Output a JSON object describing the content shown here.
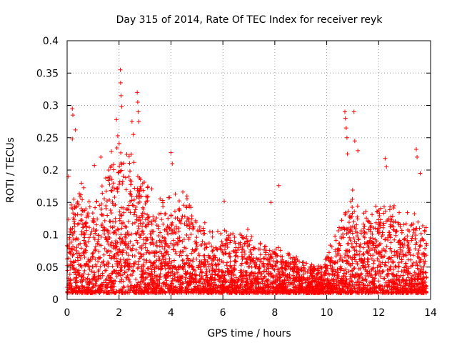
{
  "chart_data": {
    "type": "scatter",
    "title": "Day 315 of 2014, Rate Of TEC Index for receiver reyk",
    "xlabel": "GPS time / hours",
    "ylabel": "ROTI / TECUs",
    "xlim": [
      0,
      14
    ],
    "ylim": [
      0,
      0.4
    ],
    "grid": true,
    "marker": "+",
    "series_color": "#ff0000",
    "x_ticks": [
      0,
      2,
      4,
      6,
      8,
      10,
      12,
      14
    ],
    "x_tick_labels": [
      "0",
      "2",
      "4",
      "6",
      "8",
      "10",
      "12",
      "14"
    ],
    "y_ticks": [
      0,
      0.05,
      0.1,
      0.15,
      0.2,
      0.25,
      0.3,
      0.35,
      0.4
    ],
    "y_tick_labels": [
      "0",
      "0.05",
      "0.1",
      "0.15",
      "0.2",
      "0.25",
      "0.3",
      "0.35",
      "0.4"
    ],
    "envelope": {
      "description": "approximate upper envelope of ROTI values per hour bin (used to regenerate the dense point cloud)",
      "x": [
        0,
        0.5,
        1,
        1.5,
        2,
        2.5,
        3,
        3.5,
        4,
        4.5,
        5,
        5.5,
        6,
        6.5,
        7,
        7.5,
        8,
        8.5,
        9,
        9.5,
        10,
        10.5,
        11,
        11.5,
        12,
        12.5,
        13,
        13.5,
        13.85
      ],
      "y": [
        0.12,
        0.17,
        0.13,
        0.19,
        0.23,
        0.21,
        0.17,
        0.14,
        0.15,
        0.16,
        0.12,
        0.1,
        0.11,
        0.09,
        0.1,
        0.08,
        0.08,
        0.07,
        0.06,
        0.05,
        0.06,
        0.12,
        0.16,
        0.12,
        0.15,
        0.14,
        0.12,
        0.13,
        0.1
      ]
    },
    "outliers": [
      {
        "x": 0.05,
        "y": 0.19
      },
      {
        "x": 0.2,
        "y": 0.295
      },
      {
        "x": 0.22,
        "y": 0.285
      },
      {
        "x": 0.2,
        "y": 0.248
      },
      {
        "x": 0.32,
        "y": 0.262
      },
      {
        "x": 1.05,
        "y": 0.207
      },
      {
        "x": 1.3,
        "y": 0.22
      },
      {
        "x": 1.6,
        "y": 0.2
      },
      {
        "x": 1.9,
        "y": 0.278
      },
      {
        "x": 1.95,
        "y": 0.253
      },
      {
        "x": 2.05,
        "y": 0.355
      },
      {
        "x": 2.06,
        "y": 0.335
      },
      {
        "x": 2.08,
        "y": 0.315
      },
      {
        "x": 2.1,
        "y": 0.298
      },
      {
        "x": 2.5,
        "y": 0.275
      },
      {
        "x": 2.55,
        "y": 0.255
      },
      {
        "x": 2.7,
        "y": 0.32
      },
      {
        "x": 2.72,
        "y": 0.305
      },
      {
        "x": 2.74,
        "y": 0.29
      },
      {
        "x": 2.76,
        "y": 0.275
      },
      {
        "x": 4.0,
        "y": 0.227
      },
      {
        "x": 4.05,
        "y": 0.21
      },
      {
        "x": 6.05,
        "y": 0.152
      },
      {
        "x": 7.85,
        "y": 0.15
      },
      {
        "x": 8.15,
        "y": 0.176
      },
      {
        "x": 10.7,
        "y": 0.29
      },
      {
        "x": 10.72,
        "y": 0.28
      },
      {
        "x": 10.75,
        "y": 0.265
      },
      {
        "x": 10.78,
        "y": 0.25
      },
      {
        "x": 10.8,
        "y": 0.225
      },
      {
        "x": 11.05,
        "y": 0.29
      },
      {
        "x": 11.08,
        "y": 0.245
      },
      {
        "x": 11.2,
        "y": 0.23
      },
      {
        "x": 12.25,
        "y": 0.218
      },
      {
        "x": 12.3,
        "y": 0.205
      },
      {
        "x": 13.45,
        "y": 0.232
      },
      {
        "x": 13.48,
        "y": 0.22
      },
      {
        "x": 13.6,
        "y": 0.195
      }
    ]
  }
}
